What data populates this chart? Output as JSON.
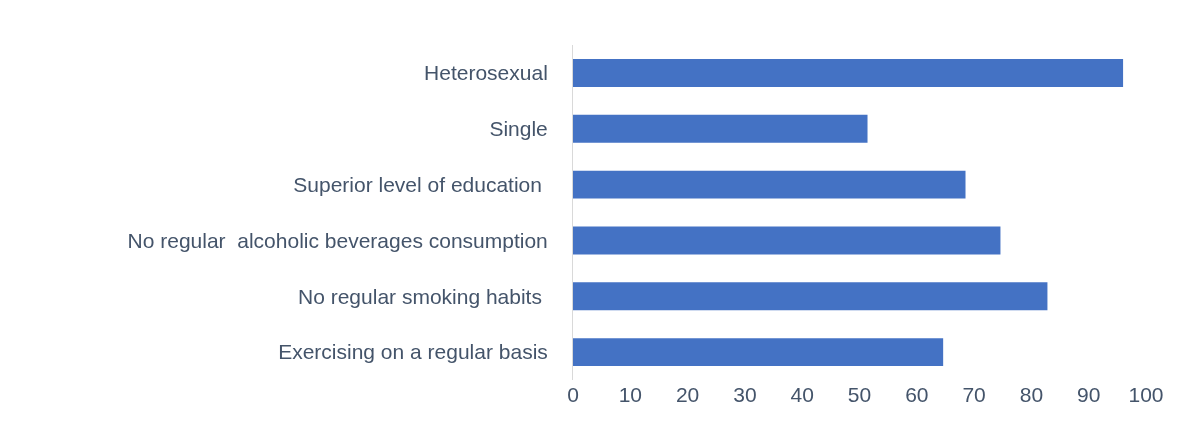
{
  "chart_data": {
    "type": "bar",
    "orientation": "horizontal",
    "categories": [
      "Heterosexual",
      "Single",
      "Superior level of education ",
      "No regular  alcoholic beverages consumption",
      "No regular smoking habits ",
      "Exercising on a regular basis"
    ],
    "values": [
      96.0,
      51.4,
      68.5,
      74.6,
      82.8,
      64.6
    ],
    "color": "#4472c4",
    "xlim": [
      0,
      100
    ],
    "xticks": [
      0,
      10,
      20,
      30,
      40,
      50,
      60,
      70,
      80,
      90,
      100
    ],
    "legend": false
  }
}
